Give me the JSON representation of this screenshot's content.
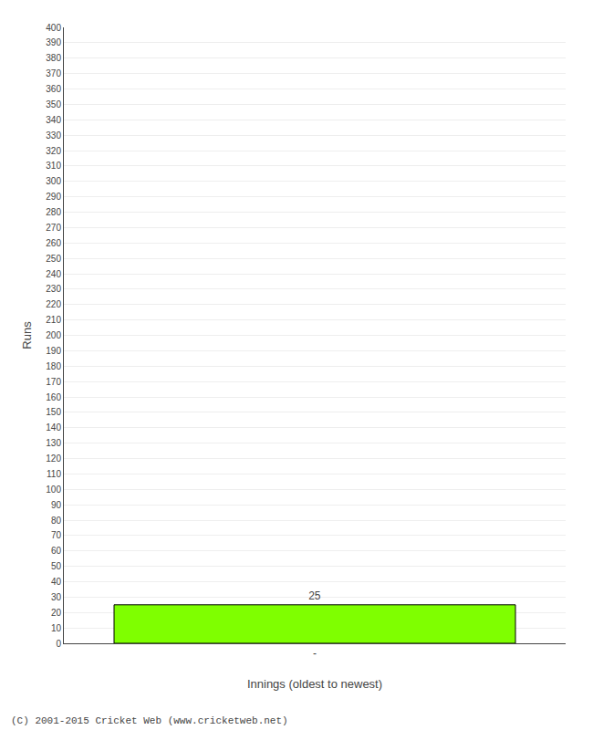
{
  "chart_data": {
    "type": "bar",
    "categories": [
      "-"
    ],
    "values": [
      25
    ],
    "color": "#7FFF00",
    "xlabel": "Innings (oldest to newest)",
    "ylabel": "Runs",
    "ylim": [
      0,
      400
    ],
    "yticks": [
      0,
      10,
      20,
      30,
      40,
      50,
      60,
      70,
      80,
      90,
      100,
      110,
      120,
      130,
      140,
      150,
      160,
      170,
      180,
      190,
      200,
      210,
      220,
      230,
      240,
      250,
      260,
      270,
      280,
      290,
      300,
      310,
      320,
      330,
      340,
      350,
      360,
      370,
      380,
      390,
      400
    ],
    "grid": true,
    "data_labels": true,
    "annotations": [
      "(C) 2001-2015 Cricket Web (www.cricketweb.net)"
    ]
  }
}
